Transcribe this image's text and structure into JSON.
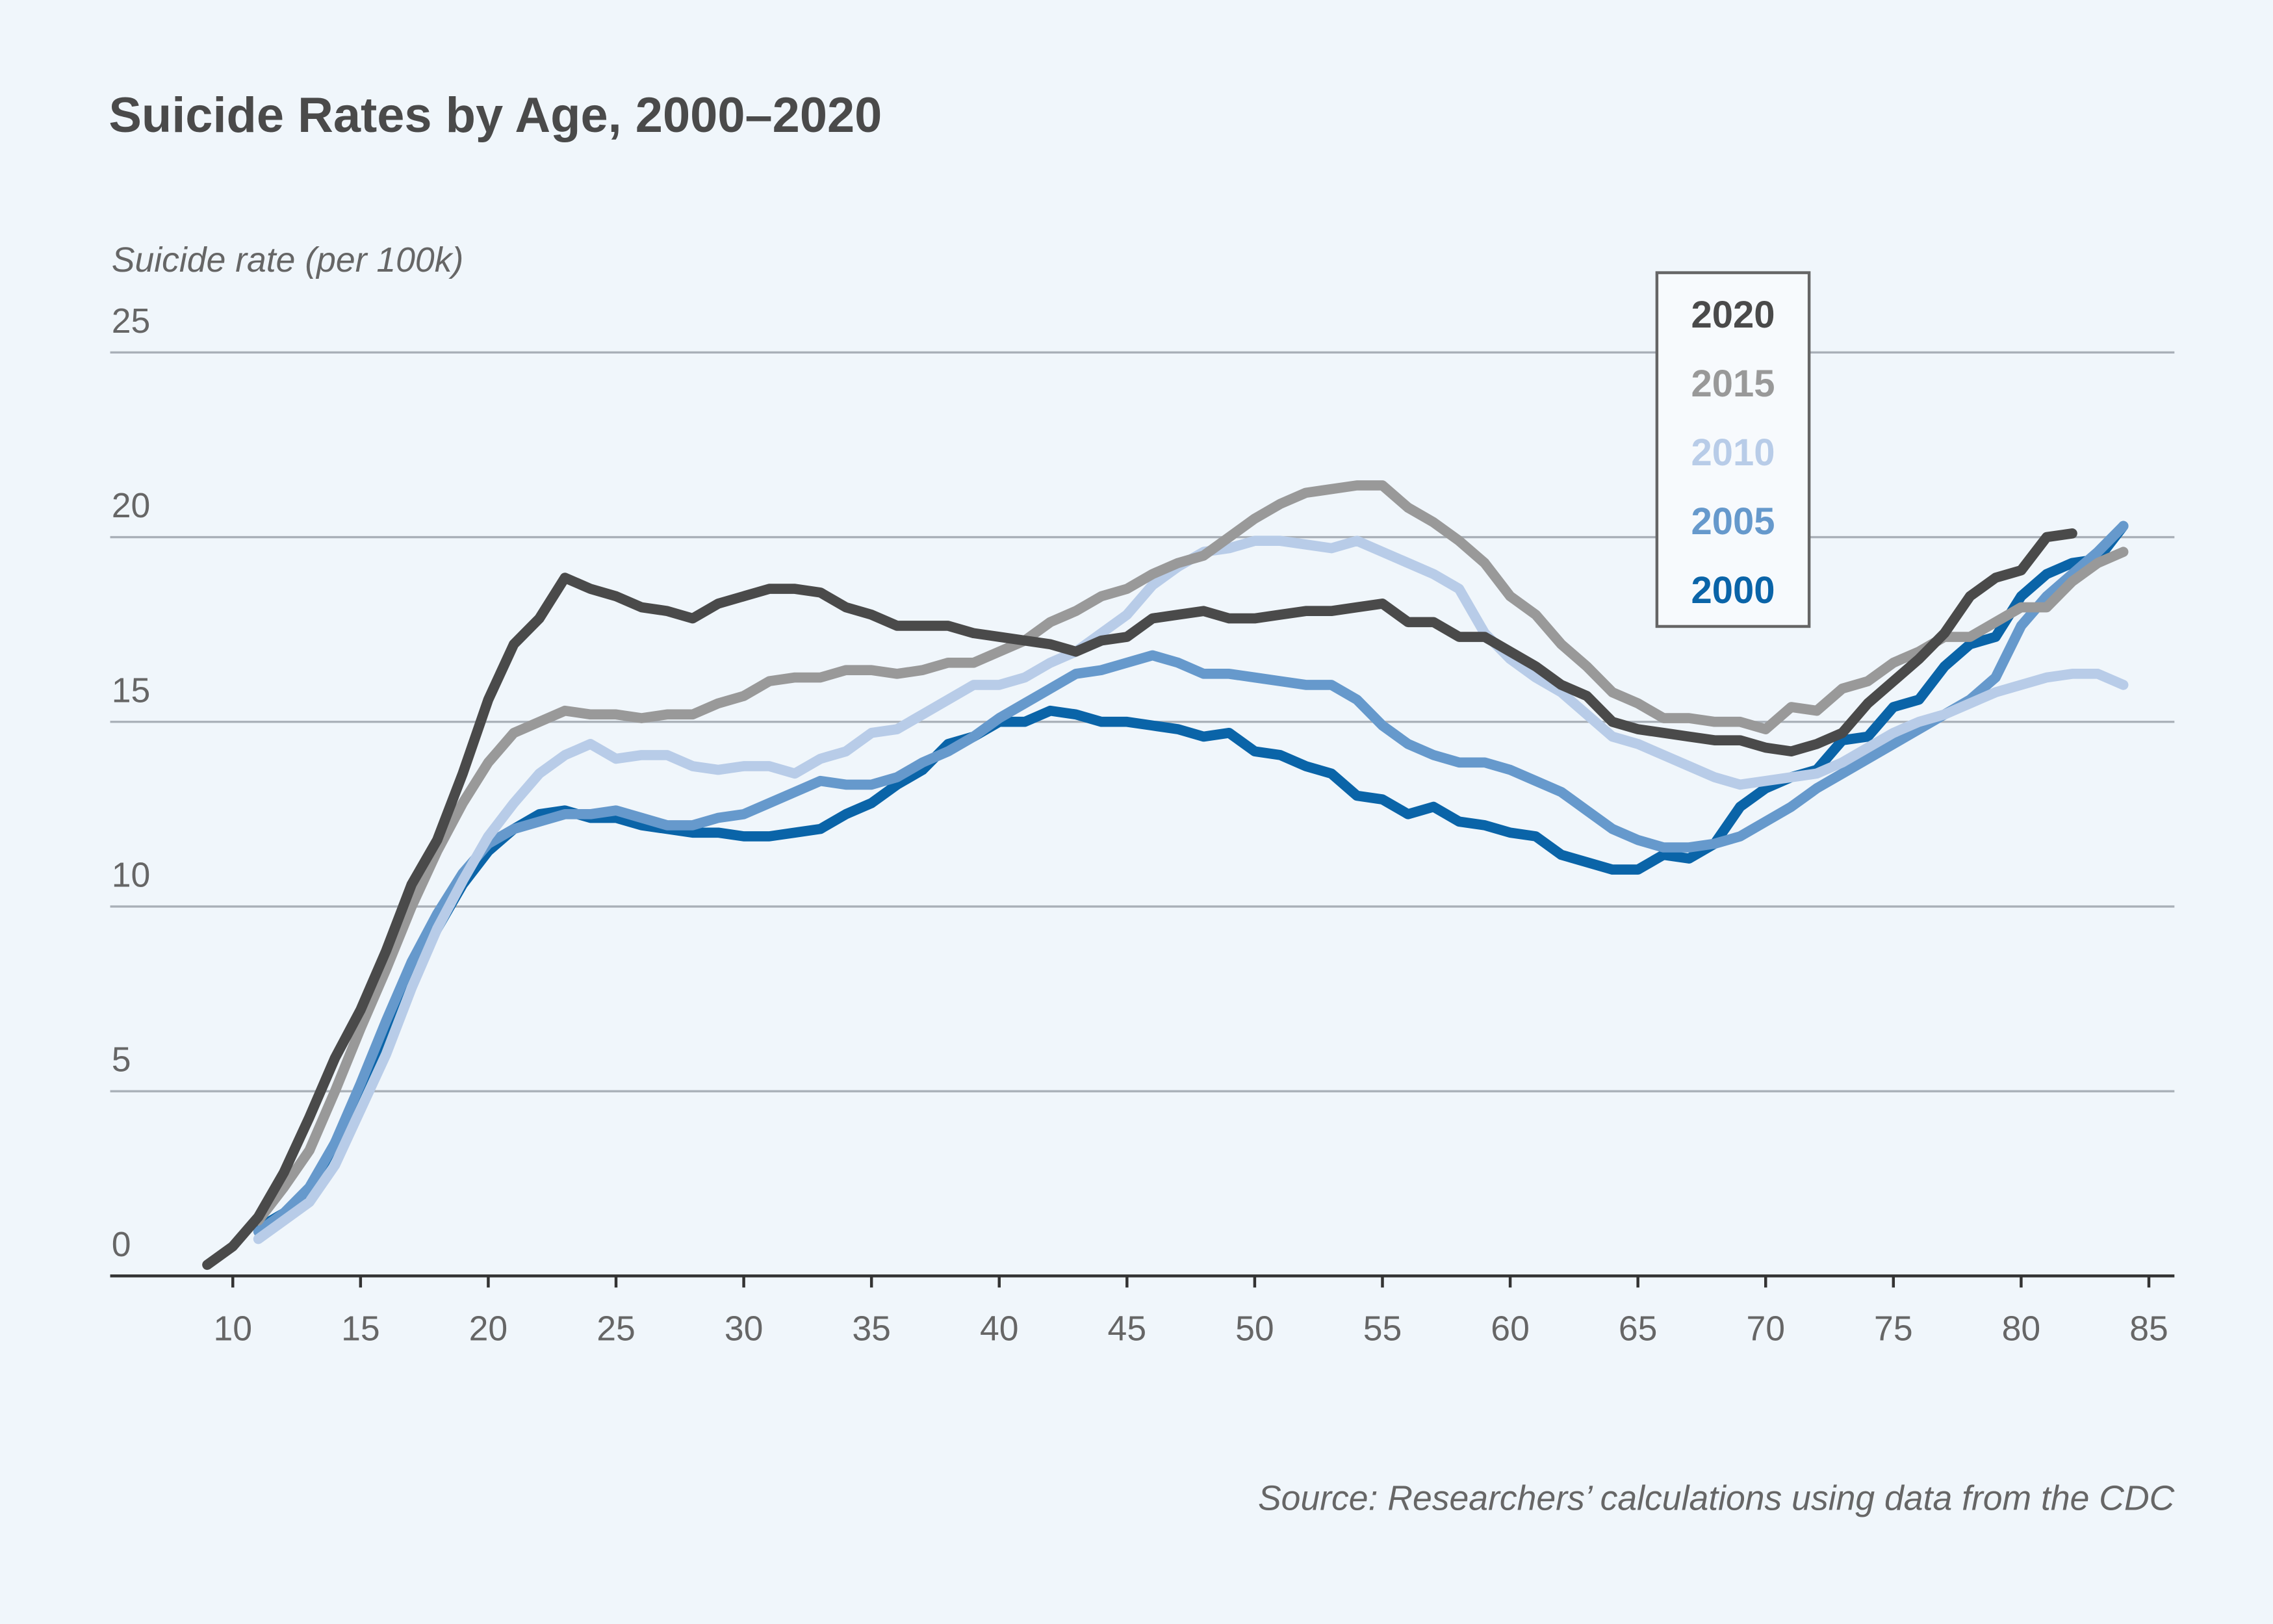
{
  "chart_data": {
    "type": "line",
    "title": "Suicide Rates by Age, 2000–2020",
    "y_label": "Suicide rate (per 100k)",
    "source": "Source: Researchers’ calculations using data from the CDC",
    "x": [
      9,
      10,
      11,
      12,
      13,
      14,
      15,
      16,
      17,
      18,
      19,
      20,
      21,
      22,
      23,
      24,
      25,
      26,
      27,
      28,
      29,
      30,
      31,
      32,
      33,
      34,
      35,
      36,
      37,
      38,
      39,
      40,
      41,
      42,
      43,
      44,
      45,
      46,
      47,
      48,
      49,
      50,
      51,
      52,
      53,
      54,
      55,
      56,
      57,
      58,
      59,
      60,
      61,
      62,
      63,
      64,
      65,
      66,
      67,
      68,
      69,
      70,
      71,
      72,
      73,
      74,
      75,
      76,
      77,
      78,
      79,
      80,
      81,
      82,
      83,
      84
    ],
    "xlim": [
      5.2,
      86
    ],
    "xticks": [
      10,
      15,
      20,
      25,
      30,
      35,
      40,
      45,
      50,
      55,
      60,
      65,
      70,
      75,
      80,
      85
    ],
    "ylim": [
      0,
      25
    ],
    "yticks": [
      0,
      5,
      10,
      15,
      20,
      25
    ],
    "grid": true,
    "legend": "top-right",
    "series": [
      {
        "name": "2020",
        "color": "#4a4a4a",
        "values": [
          0.3,
          0.8,
          1.6,
          2.8,
          4.3,
          5.9,
          7.2,
          8.8,
          10.6,
          11.8,
          13.6,
          15.6,
          17.1,
          17.8,
          18.9,
          18.6,
          18.4,
          18.1,
          18.0,
          17.8,
          18.2,
          18.4,
          18.6,
          18.6,
          18.5,
          18.1,
          17.9,
          17.6,
          17.6,
          17.6,
          17.4,
          17.3,
          17.2,
          17.1,
          16.9,
          17.2,
          17.3,
          17.8,
          17.9,
          18.0,
          17.8,
          17.8,
          17.9,
          18.0,
          18.0,
          18.1,
          18.2,
          17.7,
          17.7,
          17.3,
          17.3,
          16.9,
          16.5,
          16.0,
          15.7,
          15.0,
          14.8,
          14.7,
          14.6,
          14.5,
          14.5,
          14.3,
          14.2,
          14.4,
          14.7,
          15.5,
          16.1,
          16.7,
          17.4,
          18.4,
          18.9,
          19.1,
          20.0,
          20.1,
          null,
          null
        ]
      },
      {
        "name": "2015",
        "color": "#999999",
        "values": [
          null,
          null,
          1.5,
          2.4,
          3.4,
          5.0,
          6.7,
          8.3,
          10.0,
          11.5,
          12.8,
          13.9,
          14.7,
          15.0,
          15.3,
          15.2,
          15.2,
          15.1,
          15.2,
          15.2,
          15.5,
          15.7,
          16.1,
          16.2,
          16.2,
          16.4,
          16.4,
          16.3,
          16.4,
          16.6,
          16.6,
          16.9,
          17.2,
          17.7,
          18.0,
          18.4,
          18.6,
          19.0,
          19.3,
          19.5,
          20.0,
          20.5,
          20.9,
          21.2,
          21.3,
          21.4,
          21.4,
          20.8,
          20.4,
          19.9,
          19.3,
          18.4,
          17.9,
          17.1,
          16.5,
          15.8,
          15.5,
          15.1,
          15.1,
          15.0,
          15.0,
          14.8,
          15.4,
          15.3,
          15.9,
          16.1,
          16.6,
          16.9,
          17.3,
          17.3,
          17.7,
          18.1,
          18.1,
          18.8,
          19.3,
          19.6
        ]
      },
      {
        "name": "2010",
        "color": "#b8cce8",
        "values": [
          null,
          null,
          1.0,
          1.5,
          2.0,
          3.0,
          4.5,
          6.0,
          7.8,
          9.4,
          10.7,
          11.9,
          12.8,
          13.6,
          14.1,
          14.4,
          14.0,
          14.1,
          14.1,
          13.8,
          13.7,
          13.8,
          13.8,
          13.6,
          14.0,
          14.2,
          14.7,
          14.8,
          15.2,
          15.6,
          16.0,
          16.0,
          16.2,
          16.6,
          16.9,
          17.4,
          17.9,
          18.7,
          19.2,
          19.6,
          19.7,
          19.9,
          19.9,
          19.8,
          19.7,
          19.9,
          19.6,
          19.3,
          19.0,
          18.6,
          17.4,
          16.7,
          16.2,
          15.8,
          15.2,
          14.6,
          14.4,
          14.1,
          13.8,
          13.5,
          13.3,
          13.4,
          13.5,
          13.6,
          13.9,
          14.3,
          14.7,
          15.0,
          15.2,
          15.5,
          15.8,
          16.0,
          16.2,
          16.3,
          16.3,
          16.0
        ]
      },
      {
        "name": "2005",
        "color": "#6699cc",
        "values": [
          null,
          null,
          1.2,
          1.7,
          2.4,
          3.6,
          5.2,
          6.9,
          8.5,
          9.8,
          10.9,
          11.7,
          12.1,
          12.3,
          12.5,
          12.5,
          12.6,
          12.4,
          12.2,
          12.2,
          12.4,
          12.5,
          12.8,
          13.1,
          13.4,
          13.3,
          13.3,
          13.5,
          13.9,
          14.2,
          14.6,
          15.1,
          15.5,
          15.9,
          16.3,
          16.4,
          16.6,
          16.8,
          16.6,
          16.3,
          16.3,
          16.2,
          16.1,
          16.0,
          16.0,
          15.6,
          14.9,
          14.4,
          14.1,
          13.9,
          13.9,
          13.7,
          13.4,
          13.1,
          12.6,
          12.1,
          11.8,
          11.6,
          11.6,
          11.7,
          11.9,
          12.3,
          12.7,
          13.2,
          13.6,
          14.0,
          14.4,
          14.8,
          15.2,
          15.6,
          16.2,
          17.6,
          18.4,
          19.0,
          19.6,
          20.3
        ]
      },
      {
        "name": "2000",
        "color": "#0a64a8",
        "values": [
          null,
          null,
          1.3,
          1.7,
          2.3,
          3.6,
          5.0,
          6.5,
          8.0,
          9.4,
          10.6,
          11.5,
          12.1,
          12.5,
          12.6,
          12.4,
          12.4,
          12.2,
          12.1,
          12.0,
          12.0,
          11.9,
          11.9,
          12.0,
          12.1,
          12.5,
          12.8,
          13.3,
          13.7,
          14.4,
          14.6,
          15.0,
          15.0,
          15.3,
          15.2,
          15.0,
          15.0,
          14.9,
          14.8,
          14.6,
          14.7,
          14.2,
          14.1,
          13.8,
          13.6,
          13.0,
          12.9,
          12.5,
          12.7,
          12.3,
          12.2,
          12.0,
          11.9,
          11.4,
          11.2,
          11.0,
          11.0,
          11.4,
          11.3,
          11.7,
          12.7,
          13.2,
          13.5,
          13.7,
          14.5,
          14.6,
          15.4,
          15.6,
          16.5,
          17.1,
          17.3,
          18.4,
          19.0,
          19.3,
          19.4,
          20.3
        ]
      }
    ]
  }
}
